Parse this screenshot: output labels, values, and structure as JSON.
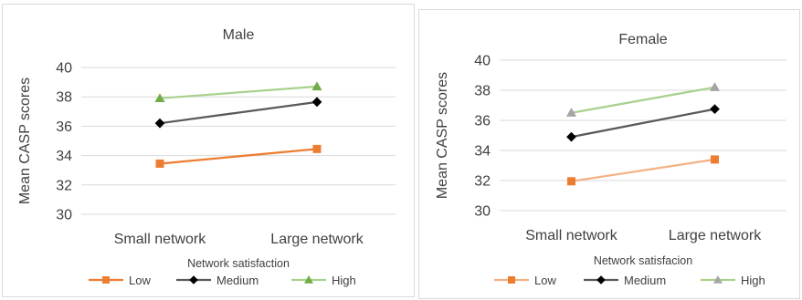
{
  "chart_data": [
    {
      "type": "line",
      "title": "Male",
      "xlabel": "Network satisfaction",
      "ylabel": "Mean CASP scores",
      "categories": [
        "Small network",
        "Large network"
      ],
      "ylim": [
        30,
        40
      ],
      "yticks": [
        "30",
        "32",
        "34",
        "36",
        "38",
        "40"
      ],
      "grid": true,
      "legend_position": "bottom",
      "series": [
        {
          "name": "Low",
          "values": [
            33.45,
            34.45
          ],
          "color": "#ed7d31",
          "marker": "square"
        },
        {
          "name": "Medium",
          "values": [
            36.2,
            37.65
          ],
          "color": "#000000",
          "line_color": "#595959",
          "marker": "diamond"
        },
        {
          "name": "High",
          "values": [
            37.9,
            38.7
          ],
          "color": "#70ad47",
          "line_color": "#a9d18e",
          "marker": "triangle"
        }
      ]
    },
    {
      "type": "line",
      "title": "Female",
      "xlabel": "Network satisfacion",
      "ylabel": "Mean CASP scores",
      "categories": [
        "Small network",
        "Large network"
      ],
      "ylim": [
        30,
        40
      ],
      "yticks": [
        "30",
        "32",
        "34",
        "36",
        "38",
        "40"
      ],
      "grid": true,
      "legend_position": "bottom",
      "series": [
        {
          "name": "Low",
          "values": [
            31.95,
            33.4
          ],
          "color": "#ed7d31",
          "line_color": "#f4b183",
          "marker": "square"
        },
        {
          "name": "Medium",
          "values": [
            34.9,
            36.75
          ],
          "color": "#000000",
          "line_color": "#595959",
          "marker": "diamond"
        },
        {
          "name": "High",
          "values": [
            36.5,
            38.2
          ],
          "color": "#a5a5a5",
          "line_color": "#a9d18e",
          "marker": "triangle"
        }
      ]
    }
  ]
}
